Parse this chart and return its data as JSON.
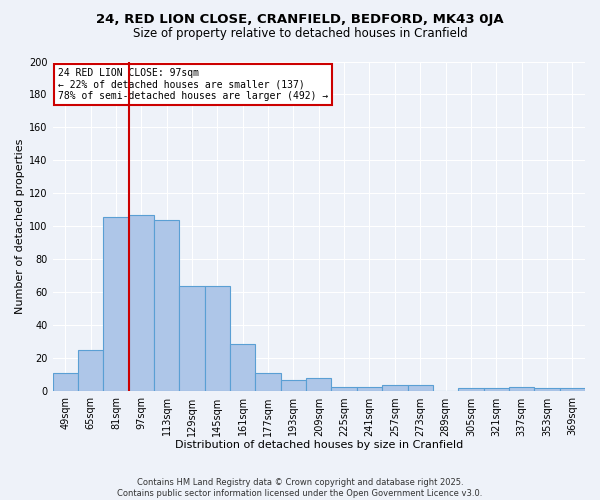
{
  "title_line1": "24, RED LION CLOSE, CRANFIELD, BEDFORD, MK43 0JA",
  "title_line2": "Size of property relative to detached houses in Cranfield",
  "xlabel": "Distribution of detached houses by size in Cranfield",
  "ylabel": "Number of detached properties",
  "categories": [
    "49sqm",
    "65sqm",
    "81sqm",
    "97sqm",
    "113sqm",
    "129sqm",
    "145sqm",
    "161sqm",
    "177sqm",
    "193sqm",
    "209sqm",
    "225sqm",
    "241sqm",
    "257sqm",
    "273sqm",
    "289sqm",
    "305sqm",
    "321sqm",
    "337sqm",
    "353sqm",
    "369sqm"
  ],
  "values": [
    11,
    25,
    106,
    107,
    104,
    64,
    64,
    29,
    11,
    7,
    8,
    3,
    3,
    4,
    4,
    0,
    2,
    2,
    3,
    2,
    2
  ],
  "bar_color": "#aec6e8",
  "bar_edge_color": "#5a9fd4",
  "red_line_x": 2.5,
  "annotation_text": "24 RED LION CLOSE: 97sqm\n← 22% of detached houses are smaller (137)\n78% of semi-detached houses are larger (492) →",
  "annotation_box_color": "#ffffff",
  "annotation_box_edge_color": "#cc0000",
  "red_line_color": "#cc0000",
  "background_color": "#eef2f9",
  "grid_color": "#ffffff",
  "ylim": [
    0,
    200
  ],
  "yticks": [
    0,
    20,
    40,
    60,
    80,
    100,
    120,
    140,
    160,
    180,
    200
  ],
  "footer_line1": "Contains HM Land Registry data © Crown copyright and database right 2025.",
  "footer_line2": "Contains public sector information licensed under the Open Government Licence v3.0."
}
